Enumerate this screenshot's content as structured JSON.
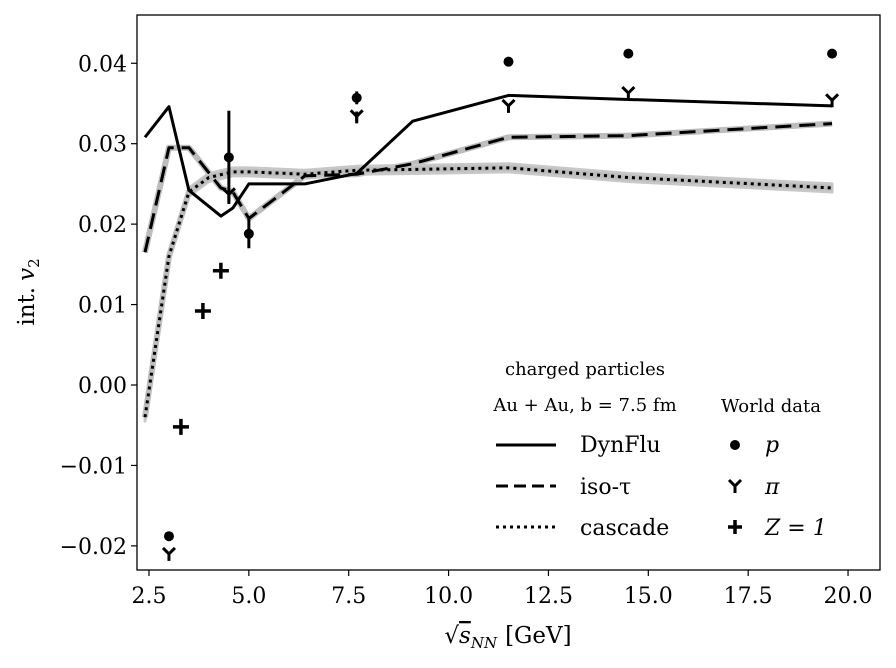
{
  "chart_data": {
    "type": "line",
    "title": "",
    "xlabel": "[GeV]",
    "xlabel_prefix": "√",
    "xlabel_var": "s",
    "xlabel_sub": "NN",
    "ylabel": "int.",
    "ylabel_var": "v",
    "ylabel_sub": "2",
    "xlim": [
      2.2,
      20.8
    ],
    "ylim": [
      -0.023,
      0.046
    ],
    "xticks": [
      2.5,
      5.0,
      7.5,
      10.0,
      12.5,
      15.0,
      17.5,
      20.0
    ],
    "xtick_labels": [
      "2.5",
      "5.0",
      "7.5",
      "10.0",
      "12.5",
      "15.0",
      "17.5",
      "20.0"
    ],
    "yticks": [
      -0.02,
      -0.01,
      0.0,
      0.01,
      0.02,
      0.03,
      0.04
    ],
    "ytick_labels": [
      "−0.02",
      "−0.01",
      "0.00",
      "0.01",
      "0.02",
      "0.03",
      "0.04"
    ],
    "grid": false,
    "series": [
      {
        "name": "DynFlu",
        "style": "solid",
        "x": [
          2.4,
          3.0,
          3.5,
          4.3,
          4.6,
          5.0,
          6.4,
          7.7,
          9.1,
          11.5,
          14.5,
          19.6
        ],
        "y": [
          0.0308,
          0.0346,
          0.0242,
          0.021,
          0.022,
          0.025,
          0.025,
          0.0263,
          0.0328,
          0.036,
          0.0355,
          0.0347
        ]
      },
      {
        "name": "iso-τ",
        "style": "dashed",
        "x": [
          2.4,
          3.0,
          3.5,
          4.3,
          4.6,
          5.0,
          6.4,
          7.7,
          9.1,
          11.5,
          14.5,
          19.6
        ],
        "y": [
          0.0165,
          0.0295,
          0.0295,
          0.0245,
          0.024,
          0.0207,
          0.026,
          0.0262,
          0.0275,
          0.0308,
          0.031,
          0.0325
        ]
      },
      {
        "name": "cascade",
        "style": "dotted",
        "x": [
          2.4,
          2.7,
          3.0,
          3.5,
          4.0,
          4.6,
          5.0,
          6.4,
          7.7,
          9.1,
          11.5,
          14.5,
          19.6
        ],
        "y": [
          -0.004,
          0.006,
          0.016,
          0.024,
          0.0258,
          0.0265,
          0.0265,
          0.0262,
          0.0267,
          0.0268,
          0.027,
          0.0258,
          0.0245
        ],
        "band": 0.0005
      }
    ],
    "markers": {
      "p": [
        {
          "x": 3.0,
          "y": -0.0188
        },
        {
          "x": 4.5,
          "y": 0.0283,
          "err": 0.0058
        },
        {
          "x": 5.0,
          "y": 0.0188,
          "err": 0.0018
        },
        {
          "x": 7.7,
          "y": 0.0357,
          "err": 0.0008
        },
        {
          "x": 11.5,
          "y": 0.0402
        },
        {
          "x": 14.5,
          "y": 0.0412
        },
        {
          "x": 19.6,
          "y": 0.0412
        }
      ],
      "pi": [
        {
          "x": 3.0,
          "y": -0.021
        },
        {
          "x": 4.5,
          "y": 0.0237
        },
        {
          "x": 7.7,
          "y": 0.0334,
          "err": 0.0006
        },
        {
          "x": 11.5,
          "y": 0.0347
        },
        {
          "x": 14.5,
          "y": 0.0363
        },
        {
          "x": 19.6,
          "y": 0.0354
        }
      ],
      "z1": [
        {
          "x": 3.3,
          "y": -0.0052
        },
        {
          "x": 3.85,
          "y": 0.0092
        },
        {
          "x": 4.3,
          "y": 0.0142
        }
      ]
    },
    "legend": {
      "title": "charged particles",
      "subtitle": "Au + Au,  b = 7.5 fm",
      "entries": [
        "DynFlu",
        "iso-τ",
        "cascade"
      ],
      "world_data_title": "World data",
      "world_entries": [
        "p",
        "π",
        "Z = 1"
      ],
      "placement": "lower-right"
    }
  }
}
